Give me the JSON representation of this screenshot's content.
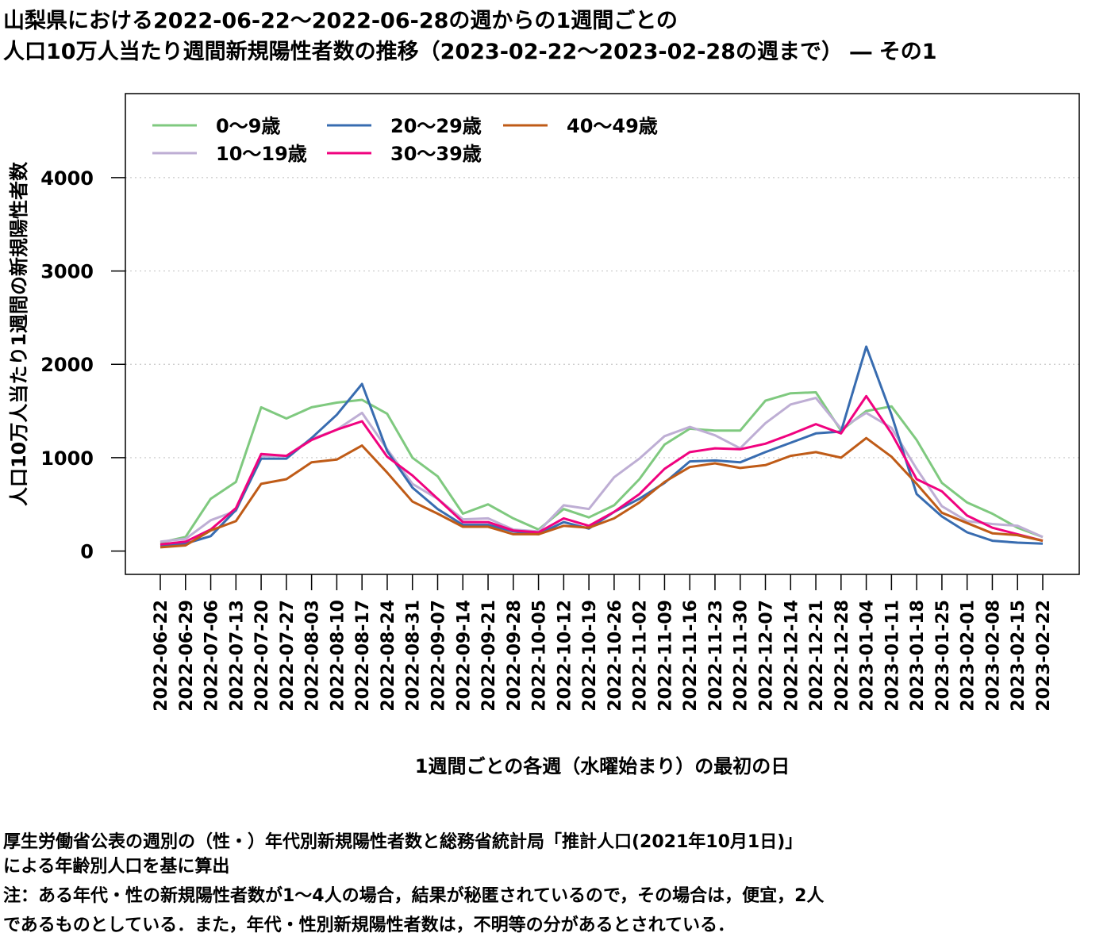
{
  "title_lines": [
    "山梨県における2022-06-22〜2022-06-28の週からの1週間ごとの",
    "人口10万人当たり週間新規陽性者数の推移（2023-02-22〜2023-02-28の週まで） ― その1"
  ],
  "notes": [
    "厚生労働省公表の週別の（性・）年代別新規陽性者数と総務省統計局「推計人口(2021年10月1日)」",
    "による年齢別人口を基に算出",
    "注：ある年代・性の新規陽性者数が1〜4人の場合，結果が秘匿されているので，その場合は，便宜，2人",
    "であるものとしている．また，年代・性別新規陽性者数は，不明等の分があるとされている．"
  ],
  "chart_data": {
    "type": "line",
    "xlabel": "1週間ごとの各週（水曜始まり）の最初の日",
    "ylabel": "人口10万人当たり1週間の新規陽性者数",
    "ylim": [
      -250,
      4900
    ],
    "yticks": [
      0,
      1000,
      2000,
      3000,
      4000
    ],
    "grid": "horizontal dotted",
    "legend_position": "top-left",
    "categories": [
      "2022-06-22",
      "2022-06-29",
      "2022-07-06",
      "2022-07-13",
      "2022-07-20",
      "2022-07-27",
      "2022-08-03",
      "2022-08-10",
      "2022-08-17",
      "2022-08-24",
      "2022-08-31",
      "2022-09-07",
      "2022-09-14",
      "2022-09-21",
      "2022-09-28",
      "2022-10-05",
      "2022-10-12",
      "2022-10-19",
      "2022-10-26",
      "2022-11-02",
      "2022-11-09",
      "2022-11-16",
      "2022-11-23",
      "2022-11-30",
      "2022-12-07",
      "2022-12-14",
      "2022-12-21",
      "2022-12-28",
      "2023-01-04",
      "2023-01-11",
      "2023-01-18",
      "2023-01-25",
      "2023-02-01",
      "2023-02-08",
      "2023-02-15",
      "2023-02-22"
    ],
    "series": [
      {
        "name": "0〜9歳",
        "color": "#7fc97f",
        "values": [
          90,
          150,
          560,
          740,
          1540,
          1420,
          1540,
          1590,
          1620,
          1470,
          1000,
          800,
          400,
          500,
          350,
          230,
          450,
          360,
          490,
          770,
          1140,
          1310,
          1290,
          1290,
          1610,
          1690,
          1700,
          1290,
          1500,
          1550,
          1190,
          730,
          520,
          400,
          250,
          150
        ]
      },
      {
        "name": "10〜19歳",
        "color": "#beaed4",
        "values": [
          100,
          130,
          330,
          430,
          1020,
          1020,
          1200,
          1300,
          1480,
          1090,
          720,
          560,
          340,
          350,
          230,
          210,
          490,
          450,
          790,
          990,
          1230,
          1330,
          1240,
          1100,
          1370,
          1570,
          1640,
          1310,
          1480,
          1320,
          880,
          480,
          320,
          290,
          270,
          150
        ]
      },
      {
        "name": "20〜29歳",
        "color": "#386cb0",
        "values": [
          60,
          80,
          160,
          440,
          990,
          990,
          1210,
          1460,
          1790,
          1070,
          680,
          450,
          280,
          280,
          210,
          180,
          310,
          240,
          420,
          560,
          730,
          960,
          970,
          950,
          1060,
          1160,
          1260,
          1280,
          2190,
          1460,
          610,
          370,
          200,
          110,
          90,
          80
        ]
      },
      {
        "name": "30〜39歳",
        "color": "#f0027f",
        "values": [
          70,
          100,
          230,
          460,
          1040,
          1020,
          1190,
          1300,
          1390,
          1010,
          810,
          560,
          310,
          310,
          220,
          200,
          350,
          270,
          420,
          610,
          880,
          1060,
          1100,
          1090,
          1150,
          1250,
          1360,
          1260,
          1660,
          1260,
          770,
          640,
          380,
          250,
          180,
          110
        ]
      },
      {
        "name": "40〜49歳",
        "color": "#bf5b17",
        "values": [
          40,
          60,
          220,
          320,
          720,
          770,
          950,
          980,
          1130,
          840,
          530,
          400,
          260,
          260,
          180,
          180,
          270,
          250,
          350,
          520,
          740,
          900,
          940,
          890,
          920,
          1020,
          1060,
          1000,
          1210,
          1010,
          720,
          410,
          300,
          190,
          170,
          110
        ]
      }
    ]
  }
}
